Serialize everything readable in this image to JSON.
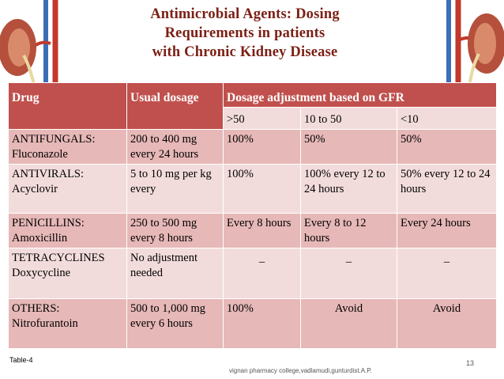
{
  "title": {
    "line1": "Antimicrobial  Agents:  Dosing",
    "line2": "Requirements  in  patients",
    "line3": "with  Chronic  Kidney  Disease"
  },
  "colors": {
    "title": "#7b1f14",
    "header": "#c0504d",
    "row_light": "#f2dcdb",
    "row_dark": "#e6b8b7"
  },
  "table": {
    "headers": {
      "drug": "Drug",
      "usual": "Usual dosage",
      "adjust": "Dosage adjustment based on GFR"
    },
    "gfr": [
      ">50",
      "10 to 50",
      "<10"
    ],
    "rows": [
      {
        "drug1": "ANTIFUNGALS:",
        "drug2": "Fluconazole",
        "usual": " 200 to 400 mg every 24 hours",
        "gt50": "  100%",
        "mid": "  50%",
        "lt10": "  50%"
      },
      {
        "drug1": "ANTIVIRALS:",
        "drug2": "Acyclovir",
        "usual": " 5 to 10 mg per kg every",
        "gt50": "100%",
        "mid": " 100% every 12  to  24 hours",
        "lt10": "50% every 12 to 24 hours"
      },
      {
        "drug1": "PENICILLINS:",
        "drug2": " Amoxicillin",
        "usual": "250 to 500 mg every 8 hours",
        "gt50": " Every 8 hours",
        "mid": "Every 8 to 12 hours",
        "lt10": "Every 24 hours"
      },
      {
        "drug1": "TETRACYCLINES",
        "drug2": "Doxycycline",
        "usual": "No adjustment  needed",
        "gt50": "_",
        "mid": "_",
        "lt10": "_"
      },
      {
        "drug1": "OTHERS:",
        "drug2": "Nitrofurantoin",
        "usual": " 500 to 1,000 mg every 6 hours",
        "gt50": "  100%",
        "mid": "Avoid",
        "lt10": "Avoid"
      }
    ]
  },
  "footer": {
    "table_label": "Table-4",
    "page": "13",
    "college": "vignan pharmacy college,vadlamudi,gunturdist.A.P."
  }
}
